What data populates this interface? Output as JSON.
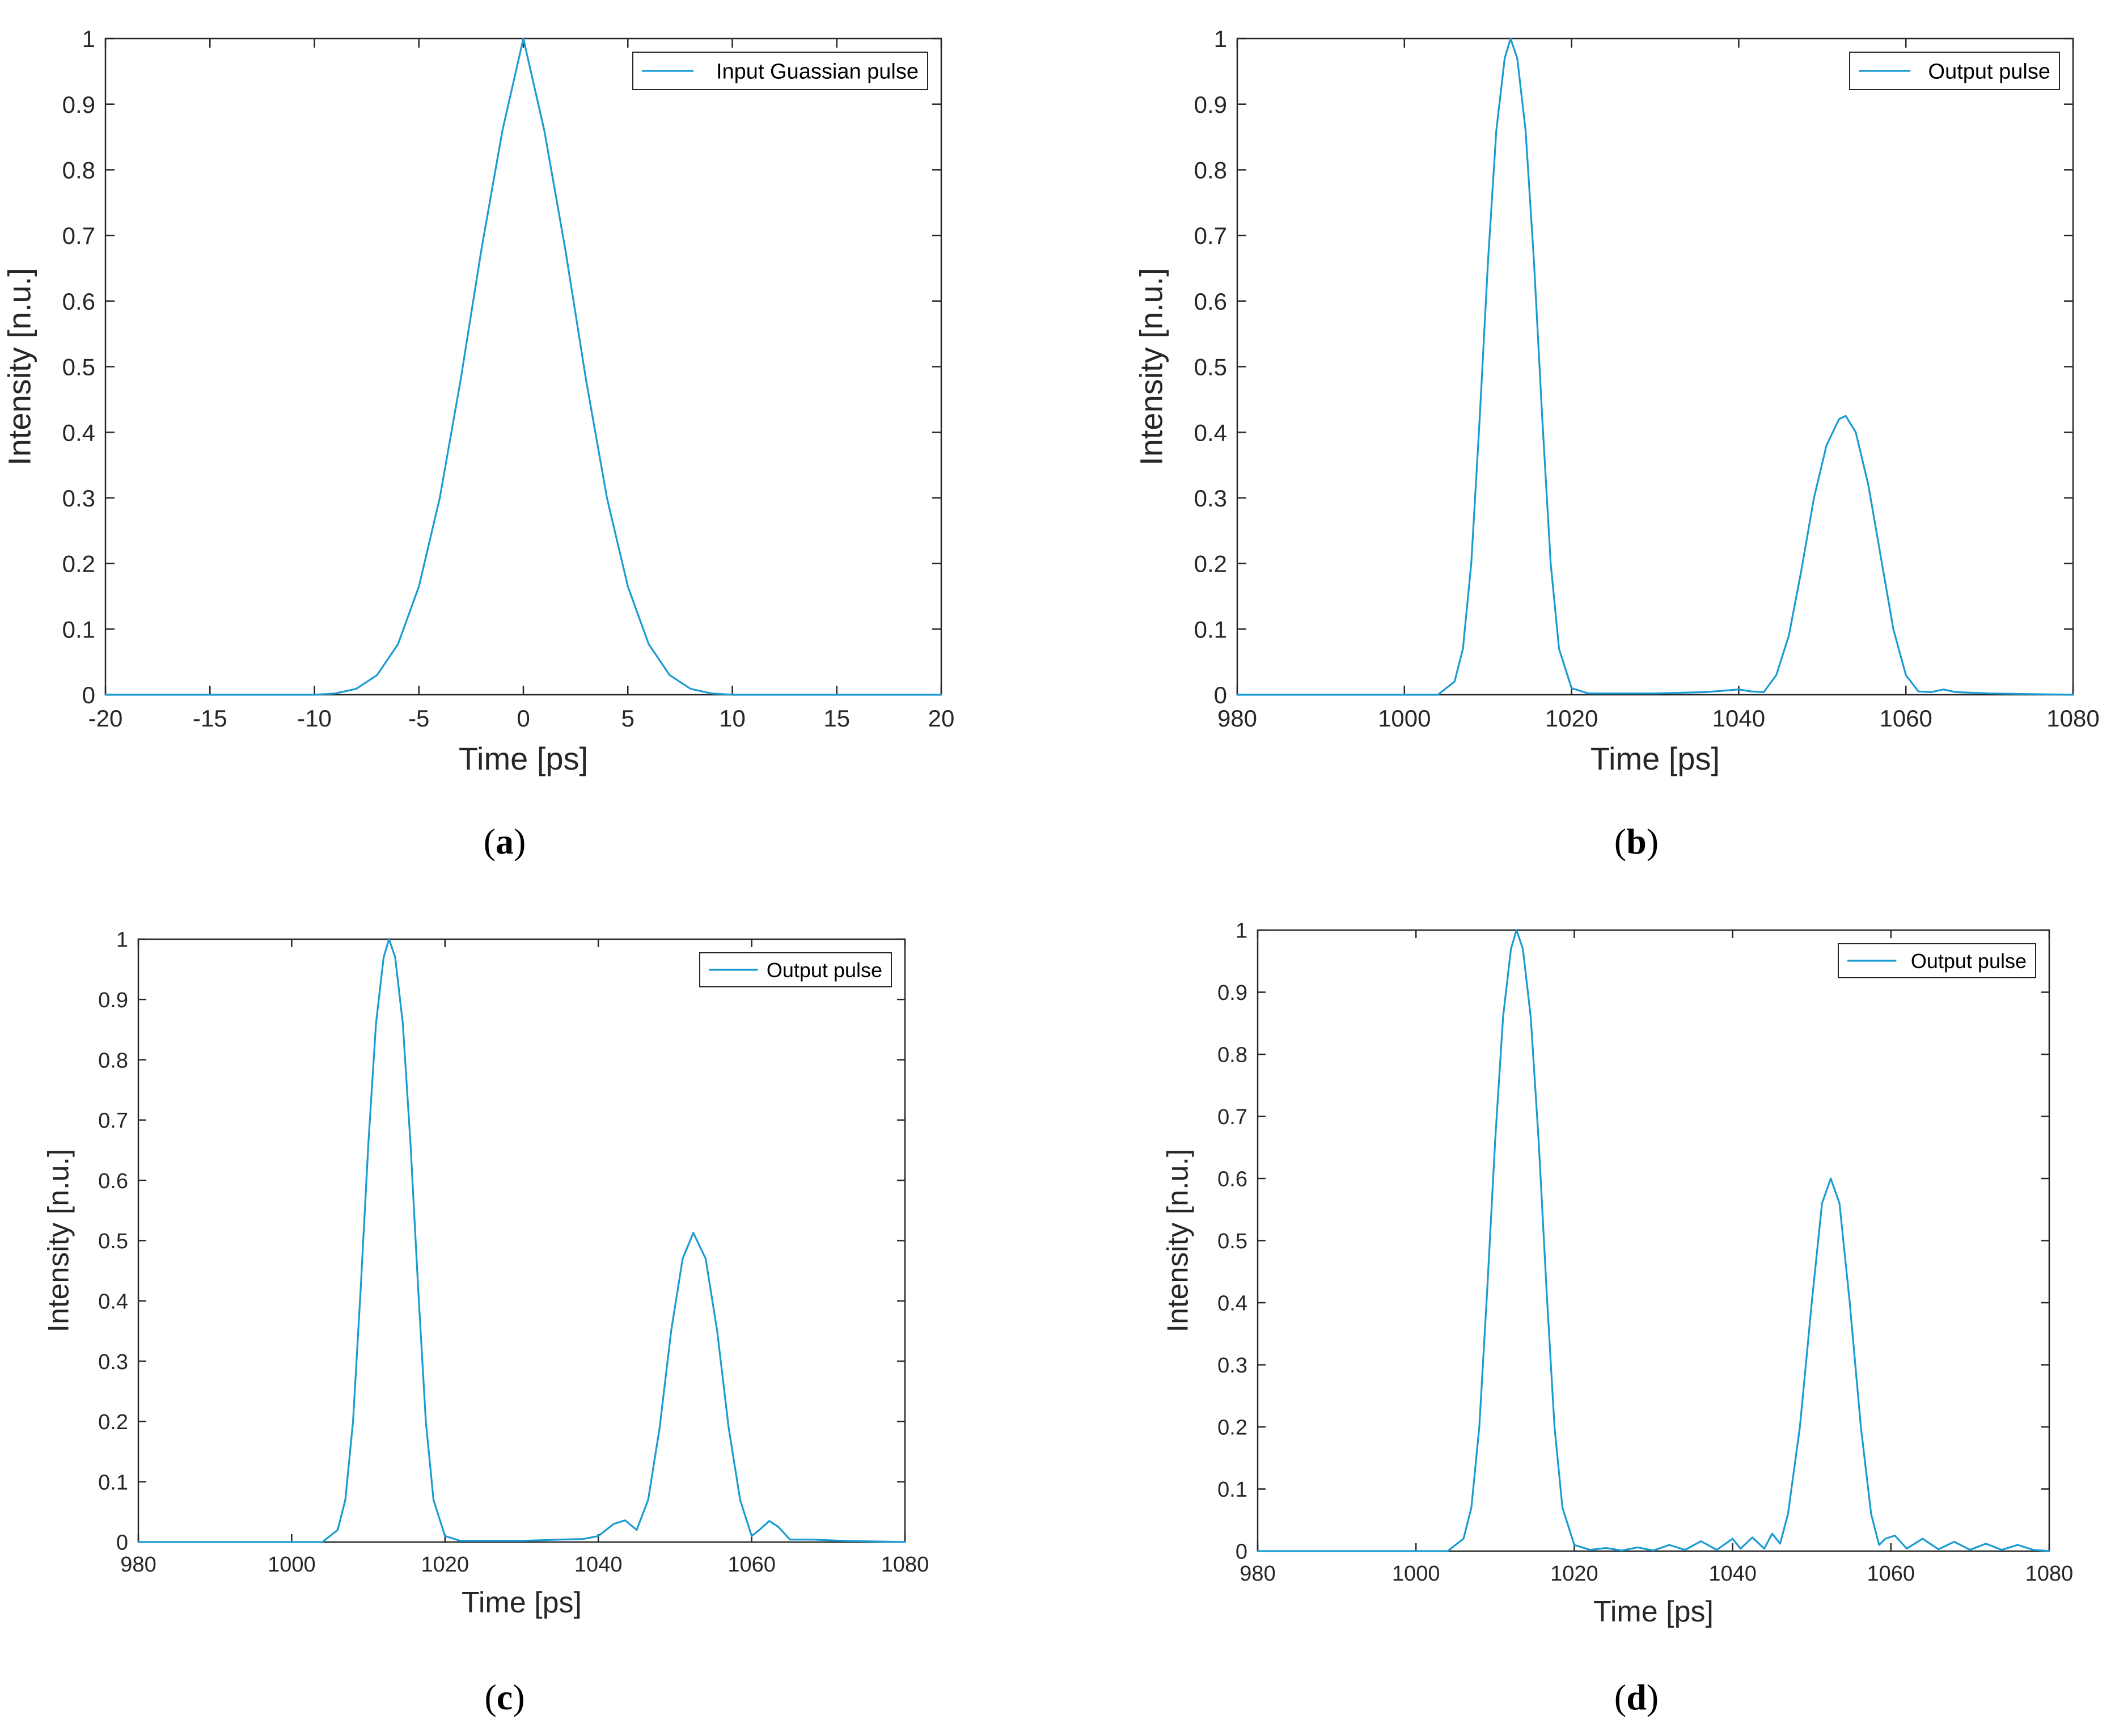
{
  "colors": {
    "line": "#1a9bd1",
    "axis": "#262626",
    "background": "#ffffff"
  },
  "chart_data": [
    {
      "type": "line",
      "caption": "(a)",
      "caption_letter": "a",
      "xlabel": "Time [ps]",
      "ylabel": "Intensity [n.u.]",
      "xlim": [
        -20,
        20
      ],
      "ylim": [
        0,
        1
      ],
      "xticks": [
        -20,
        -15,
        -10,
        -5,
        0,
        5,
        10,
        15,
        20
      ],
      "xtick_labels": [
        "-20",
        "-15",
        "-10",
        "-5",
        "0",
        "5",
        "10",
        "15",
        "20"
      ],
      "yticks": [
        0,
        0.1,
        0.2,
        0.3,
        0.4,
        0.5,
        0.6,
        0.7,
        0.8,
        0.9,
        1
      ],
      "ytick_labels": [
        "0",
        "0.1",
        "0.2",
        "0.3",
        "0.4",
        "0.5",
        "0.6",
        "0.7",
        "0.8",
        "0.9",
        "1"
      ],
      "legend_position": "top-right",
      "grid": false,
      "series": [
        {
          "name": "Input Guassian pulse",
          "x": [
            -20,
            -10,
            -9,
            -8,
            -7,
            -6,
            -5,
            -4,
            -3,
            -2,
            -1,
            0,
            1,
            2,
            3,
            4,
            5,
            6,
            7,
            8,
            9,
            10,
            20
          ],
          "y": [
            0,
            0.0,
            0.002,
            0.009,
            0.03,
            0.077,
            0.165,
            0.3,
            0.48,
            0.68,
            0.86,
            1.0,
            0.86,
            0.68,
            0.48,
            0.3,
            0.165,
            0.077,
            0.03,
            0.009,
            0.002,
            0.0,
            0
          ]
        }
      ]
    },
    {
      "type": "line",
      "caption": "(b)",
      "caption_letter": "b",
      "xlabel": "Time [ps]",
      "ylabel": "Intensity [n.u.]",
      "xlim": [
        980,
        1080
      ],
      "ylim": [
        0,
        1
      ],
      "xticks": [
        980,
        1000,
        1020,
        1040,
        1060,
        1080
      ],
      "xtick_labels": [
        "980",
        "1000",
        "1020",
        "1040",
        "1060",
        "1080"
      ],
      "yticks": [
        0,
        0.1,
        0.2,
        0.3,
        0.4,
        0.5,
        0.6,
        0.7,
        0.8,
        0.9,
        1
      ],
      "ytick_labels": [
        "0",
        "0.1",
        "0.2",
        "0.3",
        "0.4",
        "0.5",
        "0.6",
        "0.7",
        "0.8",
        "0.9",
        "1"
      ],
      "legend_position": "top-right",
      "grid": false,
      "series": [
        {
          "name": "Output pulse",
          "x": [
            980,
            1004,
            1006,
            1007,
            1008,
            1009,
            1010,
            1011,
            1012,
            1012.7,
            1013.5,
            1014.5,
            1015.5,
            1016.5,
            1017.5,
            1018.5,
            1020,
            1022,
            1030,
            1036,
            1040,
            1041.5,
            1043,
            1044.5,
            1046,
            1047.5,
            1049,
            1050.5,
            1052,
            1052.8,
            1054,
            1055.5,
            1057,
            1058.5,
            1060,
            1061.5,
            1063,
            1064.5,
            1066,
            1070,
            1080
          ],
          "y": [
            0,
            0.0,
            0.02,
            0.07,
            0.2,
            0.42,
            0.66,
            0.86,
            0.97,
            1.0,
            0.97,
            0.86,
            0.66,
            0.42,
            0.2,
            0.07,
            0.01,
            0.002,
            0.002,
            0.004,
            0.008,
            0.005,
            0.004,
            0.03,
            0.09,
            0.19,
            0.3,
            0.38,
            0.42,
            0.425,
            0.4,
            0.32,
            0.21,
            0.1,
            0.03,
            0.005,
            0.004,
            0.008,
            0.004,
            0.002,
            0
          ]
        }
      ]
    },
    {
      "type": "line",
      "caption": "(c)",
      "caption_letter": "c",
      "xlabel": "Time [ps]",
      "ylabel": "Intensity [n.u.]",
      "xlim": [
        980,
        1080
      ],
      "ylim": [
        0,
        1
      ],
      "xticks": [
        980,
        1000,
        1020,
        1040,
        1060,
        1080
      ],
      "xtick_labels": [
        "980",
        "1000",
        "1020",
        "1040",
        "1060",
        "1080"
      ],
      "yticks": [
        0,
        0.1,
        0.2,
        0.3,
        0.4,
        0.5,
        0.6,
        0.7,
        0.8,
        0.9,
        1
      ],
      "ytick_labels": [
        "0",
        "0.1",
        "0.2",
        "0.3",
        "0.4",
        "0.5",
        "0.6",
        "0.7",
        "0.8",
        "0.9",
        "1"
      ],
      "legend_position": "top-right",
      "grid": false,
      "series": [
        {
          "name": "Output pulse",
          "x": [
            980,
            1004,
            1006,
            1007,
            1008,
            1009,
            1010,
            1011,
            1012,
            1012.7,
            1013.5,
            1014.5,
            1015.5,
            1016.5,
            1017.5,
            1018.5,
            1020,
            1022,
            1030,
            1035,
            1038,
            1040,
            1042,
            1043.5,
            1045,
            1046.5,
            1048,
            1049.5,
            1051,
            1052.4,
            1054,
            1055.5,
            1057,
            1058.5,
            1060,
            1061,
            1062.3,
            1063.5,
            1065,
            1068,
            1072,
            1080
          ],
          "y": [
            0,
            0.0,
            0.02,
            0.07,
            0.2,
            0.42,
            0.66,
            0.86,
            0.97,
            1.0,
            0.97,
            0.86,
            0.66,
            0.42,
            0.2,
            0.07,
            0.01,
            0.002,
            0.002,
            0.004,
            0.005,
            0.01,
            0.03,
            0.036,
            0.02,
            0.07,
            0.19,
            0.35,
            0.47,
            0.513,
            0.47,
            0.35,
            0.19,
            0.07,
            0.01,
            0.02,
            0.035,
            0.025,
            0.004,
            0.004,
            0.002,
            0
          ]
        }
      ]
    },
    {
      "type": "line",
      "caption": "(d)",
      "caption_letter": "d",
      "xlabel": "Time [ps]",
      "ylabel": "Intensity [n.u.]",
      "xlim": [
        980,
        1080
      ],
      "ylim": [
        0,
        1
      ],
      "xticks": [
        980,
        1000,
        1020,
        1040,
        1060,
        1080
      ],
      "xtick_labels": [
        "980",
        "1000",
        "1020",
        "1040",
        "1060",
        "1080"
      ],
      "yticks": [
        0,
        0.1,
        0.2,
        0.3,
        0.4,
        0.5,
        0.6,
        0.7,
        0.8,
        0.9,
        1
      ],
      "ytick_labels": [
        "0",
        "0.1",
        "0.2",
        "0.3",
        "0.4",
        "0.5",
        "0.6",
        "0.7",
        "0.8",
        "0.9",
        "1"
      ],
      "legend_position": "top-right",
      "grid": false,
      "series": [
        {
          "name": "Output pulse",
          "x": [
            980,
            1004,
            1006,
            1007,
            1008,
            1009,
            1010,
            1011,
            1012,
            1012.7,
            1013.5,
            1014.5,
            1015.5,
            1016.5,
            1017.5,
            1018.5,
            1020,
            1022,
            1024,
            1026,
            1028,
            1030,
            1032,
            1034,
            1036,
            1038,
            1040,
            1041,
            1042.5,
            1044,
            1045,
            1046,
            1047,
            1048.5,
            1050,
            1051.3,
            1052.4,
            1053.5,
            1054.8,
            1056.2,
            1057.5,
            1058.5,
            1059.3,
            1060.5,
            1062,
            1064,
            1066,
            1068,
            1070,
            1072,
            1074,
            1076,
            1078,
            1080
          ],
          "y": [
            0,
            0.0,
            0.02,
            0.07,
            0.2,
            0.42,
            0.66,
            0.86,
            0.97,
            1.0,
            0.97,
            0.86,
            0.66,
            0.42,
            0.2,
            0.07,
            0.01,
            0.002,
            0.005,
            0.001,
            0.006,
            0.001,
            0.01,
            0.002,
            0.016,
            0.002,
            0.02,
            0.004,
            0.022,
            0.004,
            0.028,
            0.012,
            0.06,
            0.2,
            0.4,
            0.56,
            0.6,
            0.56,
            0.4,
            0.2,
            0.06,
            0.01,
            0.02,
            0.025,
            0.004,
            0.02,
            0.003,
            0.015,
            0.002,
            0.012,
            0.002,
            0.01,
            0.002,
            0
          ]
        }
      ]
    }
  ]
}
